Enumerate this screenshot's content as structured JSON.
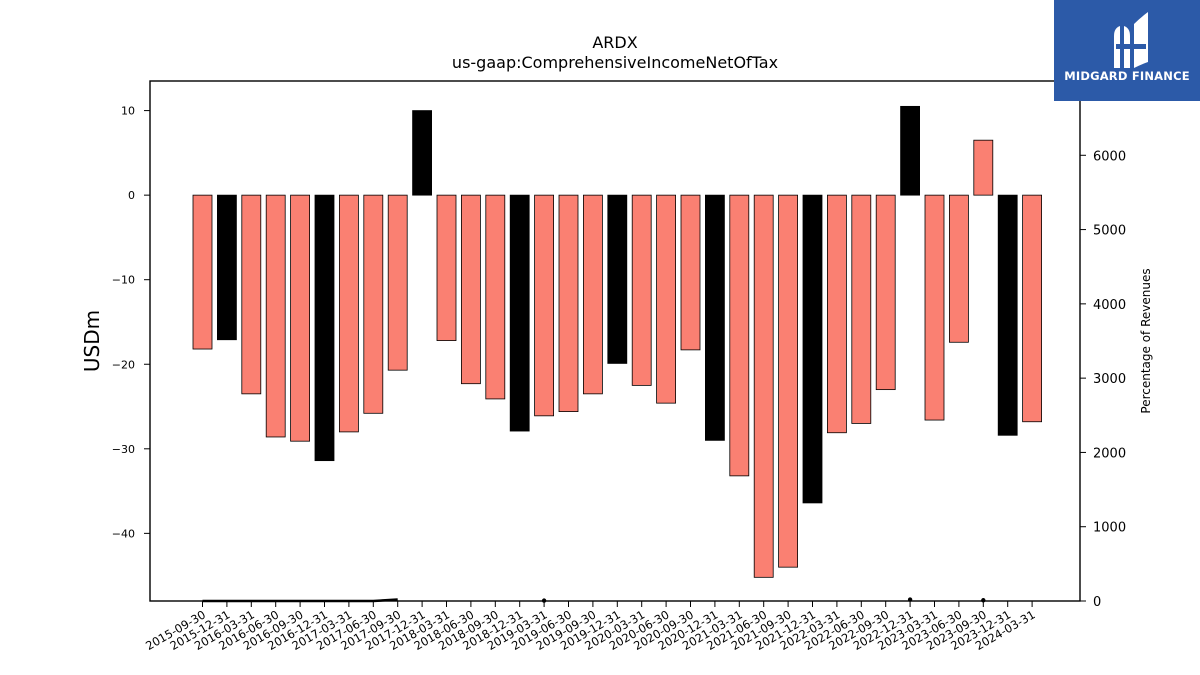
{
  "brand": {
    "name": "MIDGARD FINANCE",
    "box_color": "#2c5aa8",
    "icon": "midgard-logo-icon"
  },
  "chart_data": {
    "type": "bar",
    "title": "ARDX",
    "subtitle": "us-gaap:ComprehensiveIncomeNetOfTax",
    "ylabel": "USDm",
    "y2label": "Percentage of Revenues",
    "ylim": [
      -48,
      13.5
    ],
    "y2lim": [
      0,
      7000
    ],
    "yticks": [
      10,
      0,
      -10,
      -20,
      -30,
      -40
    ],
    "y2ticks": [
      0,
      1000,
      2000,
      3000,
      4000,
      5000,
      6000
    ],
    "categories": [
      "2015-09-30",
      "2015-12-31",
      "2016-03-31",
      "2016-06-30",
      "2016-09-30",
      "2016-12-31",
      "2017-03-31",
      "2017-06-30",
      "2017-09-30",
      "2017-12-31",
      "2018-03-31",
      "2018-06-30",
      "2018-09-30",
      "2018-12-31",
      "2019-03-31",
      "2019-06-30",
      "2019-09-30",
      "2019-12-31",
      "2020-03-31",
      "2020-06-30",
      "2020-09-30",
      "2020-12-31",
      "2021-03-31",
      "2021-06-30",
      "2021-09-30",
      "2021-12-31",
      "2022-03-31",
      "2022-06-30",
      "2022-09-30",
      "2022-12-31",
      "2023-03-31",
      "2023-06-30",
      "2023-09-30",
      "2023-12-31",
      "2024-03-31"
    ],
    "series": [
      {
        "values": [
          -18.2,
          -17.1,
          -23.5,
          -28.6,
          -29.1,
          -31.4,
          -28.0,
          -25.8,
          -20.7,
          10.0,
          -17.2,
          -22.3,
          -24.1,
          -27.9,
          -26.1,
          -25.6,
          -23.5,
          -19.9,
          -22.5,
          -24.6,
          -18.3,
          -29.0,
          -33.2,
          -45.2,
          -44.0,
          -36.4,
          -28.1,
          -27.0,
          -23.0,
          10.5,
          -26.6,
          -17.4,
          6.5,
          -28.4,
          -26.8
        ]
      }
    ],
    "bar_colors": [
      "salmon",
      "black",
      "salmon",
      "salmon",
      "salmon",
      "black",
      "salmon",
      "salmon",
      "salmon",
      "black",
      "salmon",
      "salmon",
      "salmon",
      "black",
      "salmon",
      "salmon",
      "salmon",
      "black",
      "salmon",
      "salmon",
      "salmon",
      "black",
      "salmon",
      "salmon",
      "salmon",
      "black",
      "salmon",
      "salmon",
      "salmon",
      "black",
      "salmon",
      "salmon",
      "salmon",
      "black",
      "salmon"
    ],
    "colors": {
      "salmon": "#fa8072",
      "black": "#000000",
      "edge": "#000000"
    },
    "pct_revenue_line": [
      0,
      0,
      0,
      0,
      0,
      0,
      0,
      0,
      20,
      null,
      null,
      null,
      null,
      null,
      5,
      null,
      null,
      null,
      null,
      null,
      null,
      null,
      null,
      null,
      null,
      null,
      null,
      null,
      null,
      20,
      null,
      null,
      10,
      null,
      null
    ],
    "grid": false,
    "legend": "none"
  }
}
